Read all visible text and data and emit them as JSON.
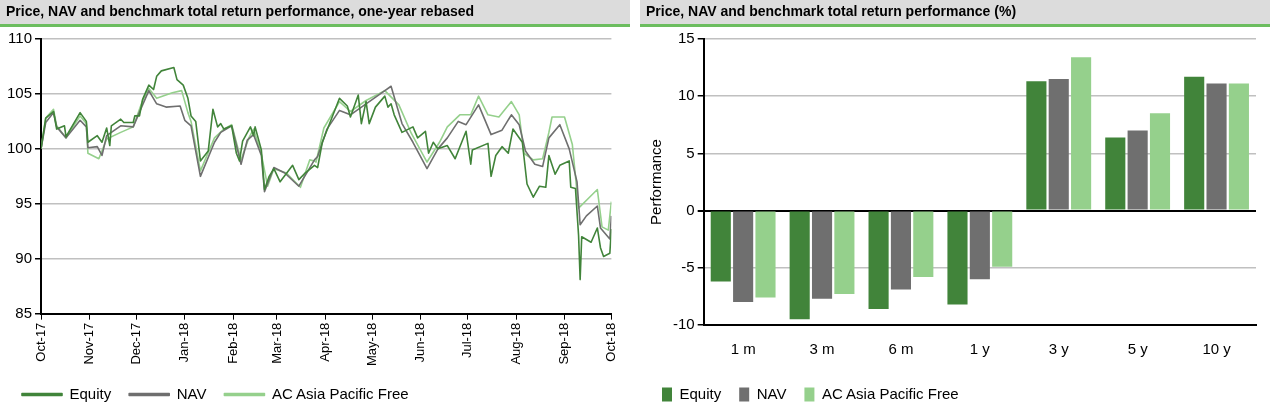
{
  "chart_data": [
    {
      "type": "line",
      "title": "Price, NAV and benchmark total return performance, one-year rebased",
      "xlim": [
        "2017-10-01",
        "2018-10-01"
      ],
      "xticks": [
        {
          "value": "2017-10-01",
          "label": "Oct-17"
        },
        {
          "value": "2017-11-01",
          "label": "Nov-17"
        },
        {
          "value": "2017-12-01",
          "label": "Dec-17"
        },
        {
          "value": "2018-01-01",
          "label": "Jan-18"
        },
        {
          "value": "2018-02-01",
          "label": "Feb-18"
        },
        {
          "value": "2018-03-01",
          "label": "Mar-18"
        },
        {
          "value": "2018-04-01",
          "label": "Apr-18"
        },
        {
          "value": "2018-05-01",
          "label": "May-18"
        },
        {
          "value": "2018-06-01",
          "label": "Jun-18"
        },
        {
          "value": "2018-07-01",
          "label": "Jul-18"
        },
        {
          "value": "2018-08-01",
          "label": "Aug-18"
        },
        {
          "value": "2018-09-01",
          "label": "Sep-18"
        },
        {
          "value": "2018-10-01",
          "label": "Oct-18"
        }
      ],
      "ylim": [
        85,
        110
      ],
      "yticks": [
        85,
        90,
        95,
        100,
        105,
        110
      ],
      "grid": "y",
      "legend": "bottom",
      "marker": "none",
      "line_style": "solid",
      "series": [
        {
          "name": "Equity",
          "color": "#41843a",
          "x": [
            "2017-10-01",
            "2017-10-04",
            "2017-10-09",
            "2017-10-11",
            "2017-10-16",
            "2017-10-17",
            "2017-10-26",
            "2017-10-30",
            "2017-10-31",
            "2017-11-06",
            "2017-11-09",
            "2017-11-12",
            "2017-11-14",
            "2017-11-15",
            "2017-11-21",
            "2017-11-23",
            "2017-11-29",
            "2017-11-30",
            "2017-12-03",
            "2017-12-05",
            "2017-12-09",
            "2017-12-12",
            "2017-12-14",
            "2017-12-17",
            "2017-12-25",
            "2017-12-27",
            "2017-12-31",
            "2018-01-03",
            "2018-01-05",
            "2018-01-08",
            "2018-01-11",
            "2018-01-16",
            "2018-01-19",
            "2018-01-22",
            "2018-01-24",
            "2018-01-26",
            "2018-01-31",
            "2018-02-03",
            "2018-02-05",
            "2018-02-07",
            "2018-02-12",
            "2018-02-14",
            "2018-02-15",
            "2018-02-19",
            "2018-02-21",
            "2018-02-24",
            "2018-02-27",
            "2018-03-03",
            "2018-03-11",
            "2018-03-15",
            "2018-03-19",
            "2018-03-25",
            "2018-03-27",
            "2018-03-30",
            "2018-04-10",
            "2018-04-15",
            "2018-04-17",
            "2018-04-22",
            "2018-04-24",
            "2018-04-27",
            "2018-04-29",
            "2018-05-03",
            "2018-05-09",
            "2018-05-11",
            "2018-05-13",
            "2018-05-15",
            "2018-05-20",
            "2018-05-27",
            "2018-05-30",
            "2018-06-04",
            "2018-06-06",
            "2018-06-09",
            "2018-06-12",
            "2018-06-18",
            "2018-06-23",
            "2018-06-30",
            "2018-07-03",
            "2018-07-04",
            "2018-07-14",
            "2018-07-16",
            "2018-07-19",
            "2018-07-23",
            "2018-07-27",
            "2018-07-30",
            "2018-08-05",
            "2018-08-08",
            "2018-08-12",
            "2018-08-16",
            "2018-08-20",
            "2018-08-22",
            "2018-08-26",
            "2018-08-29",
            "2018-09-04",
            "2018-09-05",
            "2018-09-08",
            "2018-09-10",
            "2018-09-11",
            "2018-09-12",
            "2018-09-18",
            "2018-09-22",
            "2018-09-24",
            "2018-09-26",
            "2018-09-30",
            "2018-10-01"
          ],
          "values": [
            100,
            102.8,
            103.4,
            101.8,
            102.1,
            101.1,
            103.3,
            102.5,
            100.6,
            101.2,
            100.6,
            101.9,
            100.3,
            102.1,
            102.7,
            102.4,
            102.4,
            103,
            103,
            104.5,
            105.8,
            105.4,
            106.6,
            107.1,
            107.4,
            106.3,
            105.8,
            104.6,
            103,
            102.5,
            98.9,
            99.8,
            103.6,
            102,
            102.3,
            101.8,
            102.1,
            99.6,
            98.9,
            100.7,
            102,
            101.2,
            102,
            99.9,
            96.3,
            97.5,
            98.2,
            97,
            98.5,
            97.2,
            97.8,
            98.5,
            98.3,
            100.6,
            104.6,
            103.9,
            102.9,
            104.9,
            102.3,
            104.3,
            102.3,
            103.8,
            104.8,
            103.8,
            104.1,
            103.1,
            101.5,
            102,
            101,
            101.6,
            99.6,
            100.6,
            100,
            100.3,
            99.1,
            101.6,
            98.6,
            99.9,
            100.5,
            97.5,
            99.4,
            100.2,
            99.6,
            101.8,
            100.6,
            96.8,
            95.6,
            96.6,
            96.5,
            99.4,
            97.7,
            98.5,
            98.9,
            96.5,
            96.4,
            92.1,
            88.1,
            92,
            91.5,
            92.8,
            91,
            90.2,
            90.5,
            92.7
          ]
        },
        {
          "name": "NAV",
          "color": "#6f6f6f",
          "x": [
            "2017-10-01",
            "2017-10-04",
            "2017-10-09",
            "2017-10-11",
            "2017-10-17",
            "2017-10-26",
            "2017-10-30",
            "2017-10-31",
            "2017-11-06",
            "2017-11-09",
            "2017-11-12",
            "2017-11-21",
            "2017-11-29",
            "2017-12-05",
            "2017-12-09",
            "2017-12-14",
            "2017-12-20",
            "2017-12-29",
            "2018-01-01",
            "2018-01-05",
            "2018-01-11",
            "2018-01-20",
            "2018-01-24",
            "2018-01-31",
            "2018-02-06",
            "2018-02-10",
            "2018-02-14",
            "2018-02-19",
            "2018-02-21",
            "2018-02-27",
            "2018-03-06",
            "2018-03-15",
            "2018-03-25",
            "2018-03-27",
            "2018-04-02",
            "2018-04-10",
            "2018-04-17",
            "2018-04-27",
            "2018-05-07",
            "2018-05-13",
            "2018-05-20",
            "2018-05-27",
            "2018-06-05",
            "2018-06-12",
            "2018-06-18",
            "2018-06-25",
            "2018-06-30",
            "2018-07-08",
            "2018-07-16",
            "2018-07-23",
            "2018-07-29",
            "2018-08-03",
            "2018-08-07",
            "2018-08-13",
            "2018-08-18",
            "2018-08-22",
            "2018-08-29",
            "2018-09-04",
            "2018-09-09",
            "2018-09-11",
            "2018-09-15",
            "2018-09-22",
            "2018-09-24",
            "2018-09-30",
            "2018-10-01"
          ],
          "values": [
            100,
            102.4,
            103.3,
            102,
            101,
            102.6,
            102,
            100.1,
            100.2,
            99.4,
            101.2,
            102.1,
            102,
            104,
            105.3,
            104.1,
            103.8,
            103.9,
            102.6,
            102.1,
            97.5,
            100.6,
            101.5,
            102.1,
            98.6,
            100.8,
            101.3,
            99.4,
            96.1,
            98.3,
            97.8,
            96.6,
            99,
            99.3,
            101.8,
            103.5,
            103.1,
            104.1,
            105.1,
            105.7,
            102.3,
            100.6,
            98.2,
            100,
            101,
            102.5,
            102.2,
            104,
            101.3,
            101.7,
            103.1,
            102.2,
            99.8,
            98.6,
            98.4,
            101,
            102.2,
            100,
            97,
            93.1,
            93.9,
            94.8,
            92.8,
            91.8,
            93.9
          ]
        },
        {
          "name": "AC Asia Pacific Free",
          "color": "#95d08c",
          "x": [
            "2017-10-01",
            "2017-10-04",
            "2017-10-09",
            "2017-10-11",
            "2017-10-17",
            "2017-10-26",
            "2017-10-30",
            "2017-10-31",
            "2017-11-07",
            "2017-11-12",
            "2017-11-21",
            "2017-11-29",
            "2017-12-05",
            "2017-12-09",
            "2017-12-14",
            "2017-12-24",
            "2017-12-30",
            "2018-01-03",
            "2018-01-05",
            "2018-01-11",
            "2018-01-20",
            "2018-01-26",
            "2018-01-31",
            "2018-02-06",
            "2018-02-11",
            "2018-02-14",
            "2018-02-19",
            "2018-02-23",
            "2018-02-27",
            "2018-03-07",
            "2018-03-16",
            "2018-03-22",
            "2018-03-25",
            "2018-03-26",
            "2018-03-31",
            "2018-04-10",
            "2018-04-17",
            "2018-04-27",
            "2018-05-09",
            "2018-05-18",
            "2018-05-26",
            "2018-06-05",
            "2018-06-13",
            "2018-06-18",
            "2018-06-26",
            "2018-07-03",
            "2018-07-08",
            "2018-07-14",
            "2018-07-21",
            "2018-07-29",
            "2018-08-03",
            "2018-08-06",
            "2018-08-12",
            "2018-08-18",
            "2018-08-22",
            "2018-08-24",
            "2018-09-01",
            "2018-09-06",
            "2018-09-10",
            "2018-09-17",
            "2018-09-22",
            "2018-09-25",
            "2018-09-29",
            "2018-10-01"
          ],
          "values": [
            100,
            102.8,
            103.6,
            102.1,
            101,
            103,
            102.3,
            99.6,
            99.1,
            100.9,
            101.5,
            102,
            104.4,
            105.5,
            104.6,
            105.1,
            105.3,
            103.3,
            102.5,
            98,
            101,
            101.8,
            102.2,
            99,
            101,
            101.8,
            99.5,
            96.6,
            98.2,
            97.8,
            96.5,
            99,
            98.9,
            98.8,
            101.9,
            104.3,
            103.4,
            104.4,
            105.3,
            104,
            101.4,
            98.8,
            100.6,
            102,
            103.1,
            103.1,
            104.8,
            103.1,
            102.9,
            104.3,
            103.1,
            99.6,
            99,
            99.1,
            101.5,
            102.9,
            102.9,
            100.4,
            94.6,
            95.6,
            96.3,
            92.9,
            92.6,
            95.2
          ]
        }
      ]
    },
    {
      "type": "bar",
      "title": "Price, NAV and benchmark total return performance (%)",
      "ylabel": "Performance",
      "categories": [
        "1 m",
        "3 m",
        "6 m",
        "1 y",
        "3 y",
        "5 y",
        "10 y"
      ],
      "ylim": [
        -10,
        15
      ],
      "yticks": [
        -10,
        -5,
        0,
        5,
        10,
        15
      ],
      "grid": "y",
      "legend": "bottom",
      "series": [
        {
          "name": "Equity",
          "color": "#41843a",
          "values": [
            -6.2,
            -9.5,
            -8.6,
            -8.2,
            11.3,
            6.4,
            11.7
          ]
        },
        {
          "name": "NAV",
          "color": "#6f6f6f",
          "values": [
            -8.0,
            -7.7,
            -6.9,
            -6.0,
            11.5,
            7.0,
            11.1
          ]
        },
        {
          "name": "AC Asia Pacific Free",
          "color": "#95d08c",
          "values": [
            -7.6,
            -7.3,
            -5.8,
            -4.9,
            13.4,
            8.5,
            11.1
          ]
        }
      ]
    }
  ]
}
